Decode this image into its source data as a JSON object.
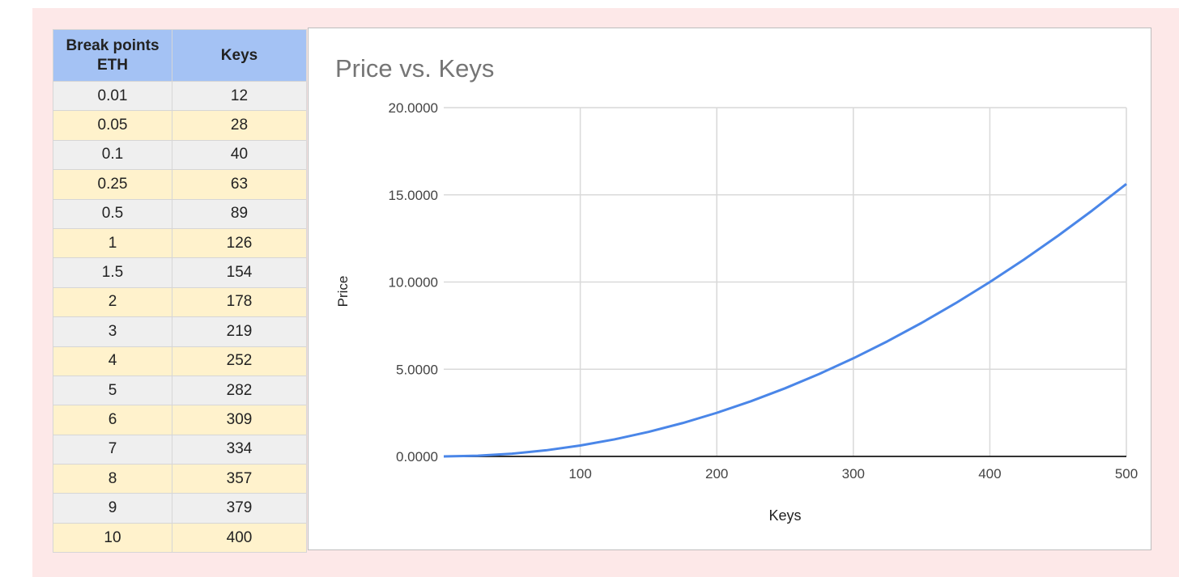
{
  "table": {
    "headers": [
      "Break points ETH",
      "Keys"
    ],
    "rows": [
      [
        "0.01",
        "12"
      ],
      [
        "0.05",
        "28"
      ],
      [
        "0.1",
        "40"
      ],
      [
        "0.25",
        "63"
      ],
      [
        "0.5",
        "89"
      ],
      [
        "1",
        "126"
      ],
      [
        "1.5",
        "154"
      ],
      [
        "2",
        "178"
      ],
      [
        "3",
        "219"
      ],
      [
        "4",
        "252"
      ],
      [
        "5",
        "282"
      ],
      [
        "6",
        "309"
      ],
      [
        "7",
        "334"
      ],
      [
        "8",
        "357"
      ],
      [
        "9",
        "379"
      ],
      [
        "10",
        "400"
      ]
    ]
  },
  "chart_data": {
    "type": "line",
    "title": "Price vs. Keys",
    "xlabel": "Keys",
    "ylabel": "Price",
    "xlim": [
      0,
      500
    ],
    "ylim": [
      0,
      20
    ],
    "xticks": [
      "100",
      "200",
      "300",
      "400",
      "500"
    ],
    "yticks": [
      "0.0000",
      "5.0000",
      "10.0000",
      "15.0000",
      "20.0000"
    ],
    "grid": true,
    "color": "#4a86e8",
    "x": [
      0,
      25,
      50,
      75,
      100,
      125,
      150,
      175,
      200,
      225,
      250,
      275,
      300,
      325,
      350,
      375,
      400,
      425,
      450,
      475,
      500
    ],
    "y": [
      0,
      0.0391,
      0.1563,
      0.3516,
      0.625,
      0.9766,
      1.4063,
      1.9141,
      2.5,
      3.1641,
      3.9063,
      4.7266,
      5.625,
      6.6016,
      7.6563,
      8.7891,
      10,
      11.2891,
      12.6563,
      14.1016,
      15.625
    ]
  }
}
